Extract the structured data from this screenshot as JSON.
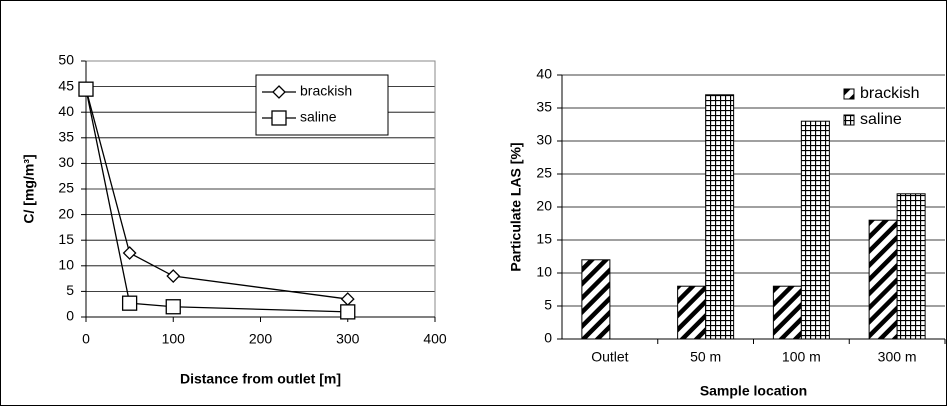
{
  "chart_data": [
    {
      "type": "line",
      "xlabel": "Distance from outlet [m]",
      "ylabel": "C/ [mg/m³]",
      "x": [
        0,
        50,
        100,
        300
      ],
      "series": [
        {
          "name": "brackish",
          "color": "#000000",
          "marker": "diamond",
          "values": [
            44.5,
            12.5,
            8,
            3.5
          ]
        },
        {
          "name": "saline",
          "color": "#000000",
          "marker": "square",
          "values": [
            44.5,
            2.7,
            2,
            1
          ]
        }
      ],
      "xlim": [
        0,
        400
      ],
      "xticks": [
        0,
        100,
        200,
        300,
        400
      ],
      "ylim": [
        0,
        50
      ],
      "yticks": [
        0,
        5,
        10,
        15,
        20,
        25,
        30,
        35,
        40,
        45,
        50
      ],
      "grid": true,
      "legend": "top-right"
    },
    {
      "type": "bar",
      "xlabel": "Sample location",
      "ylabel": "Particulate LAS [%]",
      "categories": [
        "Outlet",
        "50 m",
        "100 m",
        "300 m"
      ],
      "series": [
        {
          "name": "brackish",
          "color": "#000000",
          "pattern": "diagonal",
          "values": [
            12,
            8,
            8,
            18
          ]
        },
        {
          "name": "saline",
          "color": "#000000",
          "pattern": "grid",
          "values": [
            null,
            37,
            33,
            22
          ]
        }
      ],
      "ylim": [
        0,
        40
      ],
      "yticks": [
        0,
        5,
        10,
        15,
        20,
        25,
        30,
        35,
        40
      ],
      "grid": true,
      "legend": "right"
    }
  ]
}
